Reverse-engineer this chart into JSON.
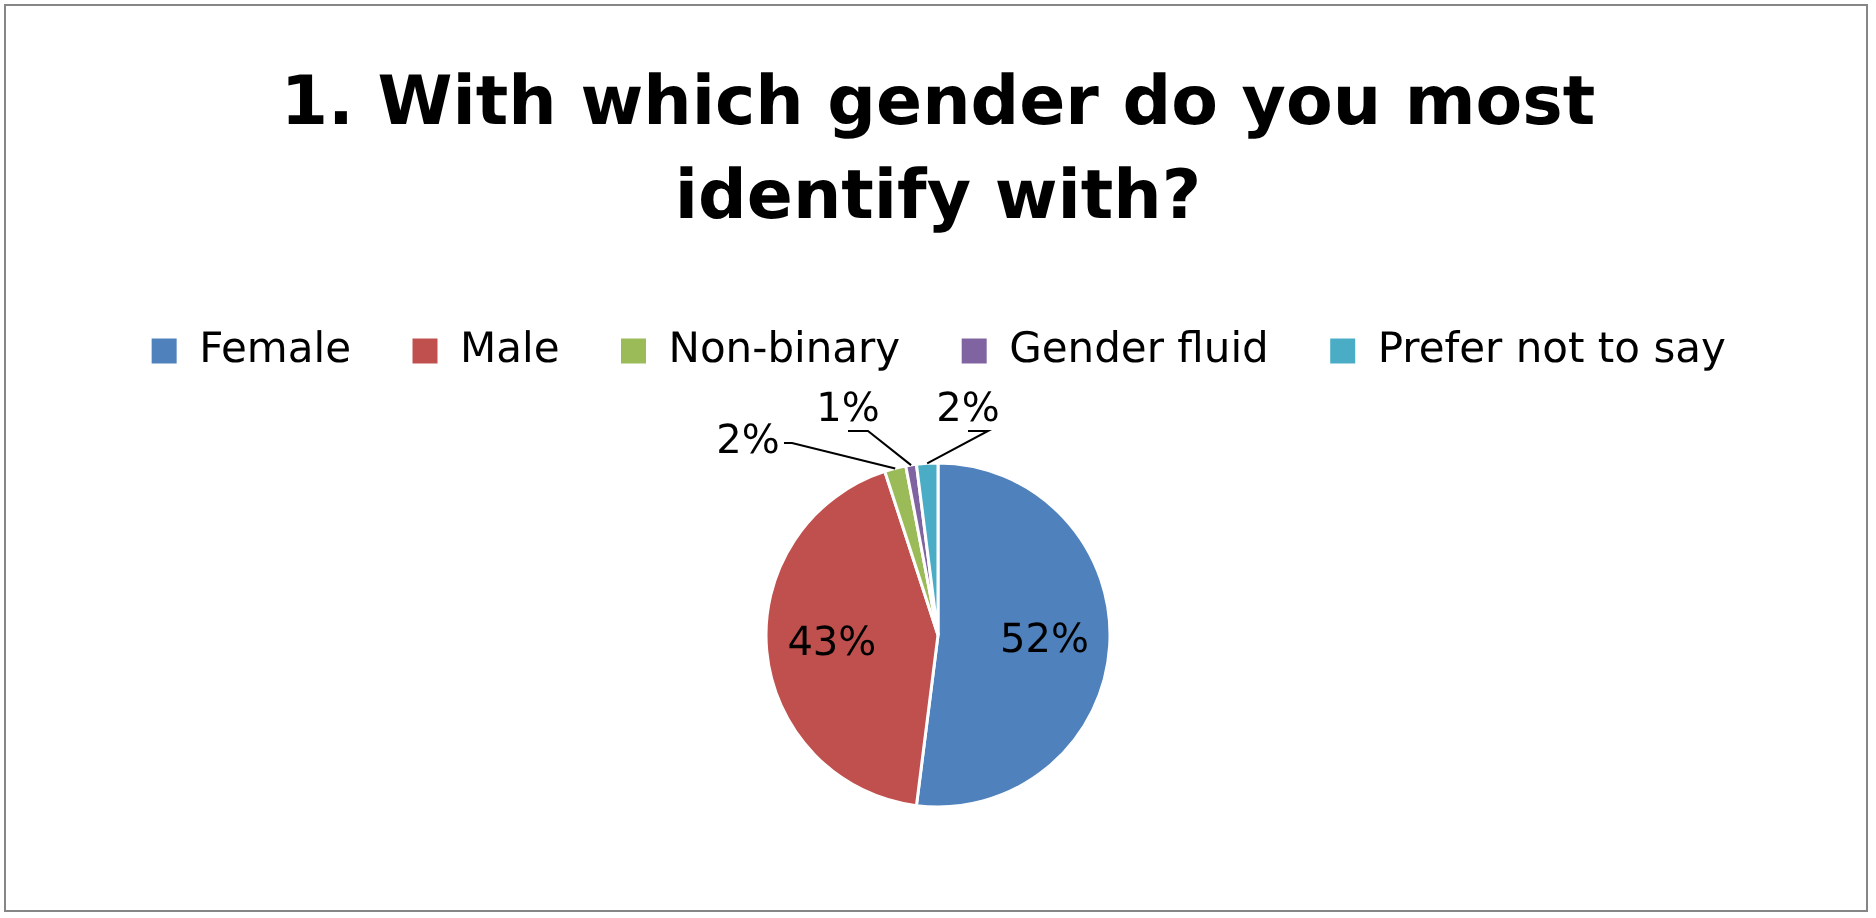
{
  "chart_data": {
    "type": "pie",
    "title": "1. With which gender do you most identify with?",
    "categories": [
      "Female",
      "Male",
      "Non-binary",
      "Gender fluid",
      "Prefer not to say"
    ],
    "values": [
      52,
      43,
      2,
      1,
      2
    ],
    "colors": [
      "#4f81bd",
      "#c0504d",
      "#9bbb59",
      "#8064a2",
      "#4bacc6"
    ],
    "value_labels": [
      "52%",
      "43%",
      "2%",
      "1%",
      "2%"
    ],
    "legend": "top"
  }
}
